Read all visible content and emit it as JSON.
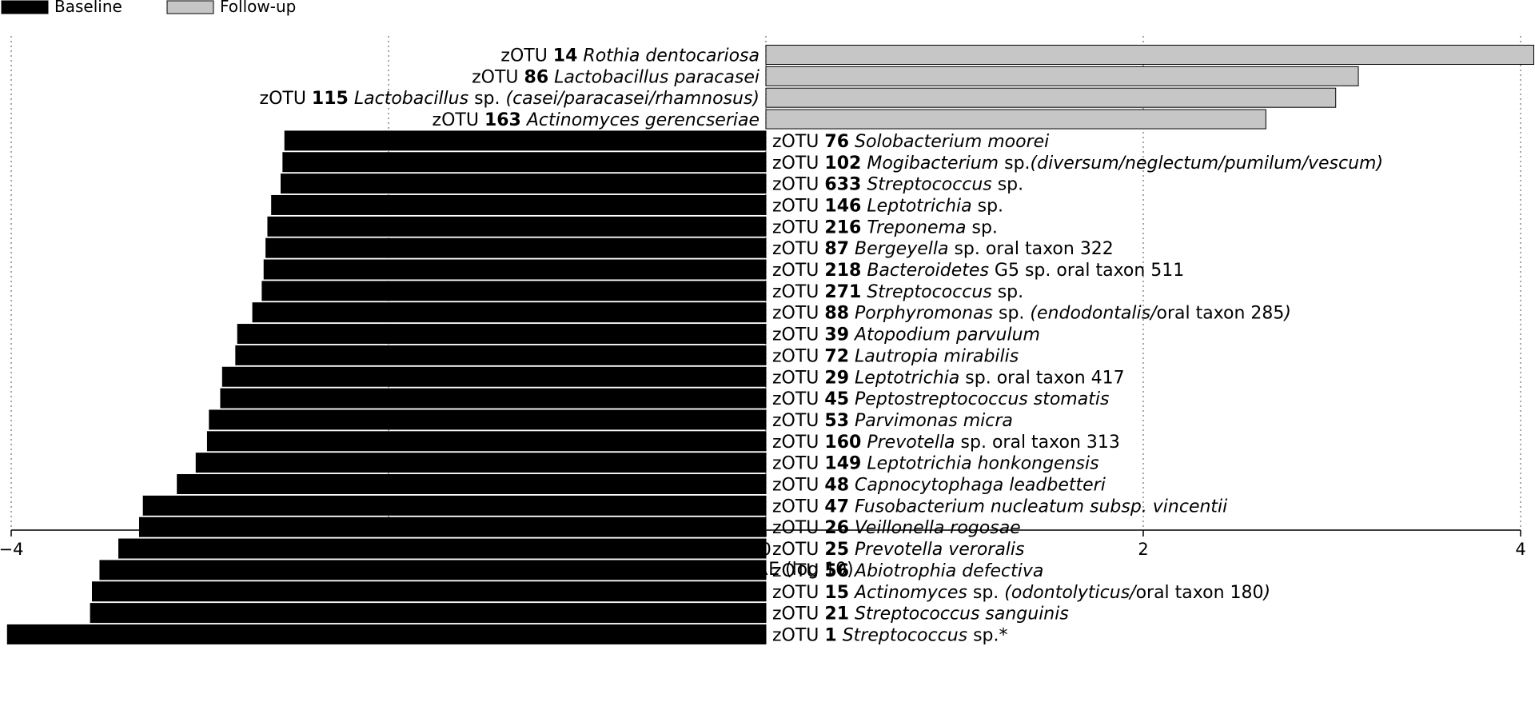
{
  "chart_data": {
    "type": "bar",
    "orientation": "horizontal",
    "xlabel": "LDA SCORE (log 10)",
    "xlim": [
      -4.0,
      4.0
    ],
    "xticks": [
      -4,
      -2,
      0,
      2,
      4
    ],
    "xtick_labels": [
      "−4",
      "−2",
      "0",
      "2",
      "4"
    ],
    "grid": "vertical dotted lines at ticks",
    "legend_position": "top-left",
    "legend": [
      {
        "name": "Baseline",
        "color": "#000000"
      },
      {
        "name": "Follow-up",
        "color": "#c6c6c6"
      }
    ],
    "bars": [
      {
        "group": "Follow-up",
        "value": 4.07,
        "label": [
          {
            "t": "zOTU "
          },
          {
            "t": "14",
            "b": 1
          },
          {
            "t": " "
          },
          {
            "t": "Rothia dentocariosa",
            "i": 1
          }
        ]
      },
      {
        "group": "Follow-up",
        "value": 3.14,
        "label": [
          {
            "t": "zOTU "
          },
          {
            "t": "86",
            "b": 1
          },
          {
            "t": " "
          },
          {
            "t": "Lactobacillus paracasei",
            "i": 1
          }
        ]
      },
      {
        "group": "Follow-up",
        "value": 3.02,
        "label": [
          {
            "t": "zOTU "
          },
          {
            "t": "115",
            "b": 1
          },
          {
            "t": " "
          },
          {
            "t": "Lactobacillus",
            "i": 1
          },
          {
            "t": " sp. "
          },
          {
            "t": "(casei/paracasei/rhamnosus)",
            "i": 1
          }
        ]
      },
      {
        "group": "Follow-up",
        "value": 2.65,
        "label": [
          {
            "t": "zOTU "
          },
          {
            "t": "163",
            "b": 1
          },
          {
            "t": " "
          },
          {
            "t": "Actinomyces gerencseriae",
            "i": 1
          }
        ]
      },
      {
        "group": "Baseline",
        "value": -2.55,
        "label": [
          {
            "t": "zOTU "
          },
          {
            "t": "76",
            "b": 1
          },
          {
            "t": " "
          },
          {
            "t": "Solobacterium moorei",
            "i": 1
          }
        ]
      },
      {
        "group": "Baseline",
        "value": -2.56,
        "label": [
          {
            "t": "zOTU "
          },
          {
            "t": "102",
            "b": 1
          },
          {
            "t": " "
          },
          {
            "t": "Mogibacterium",
            "i": 1
          },
          {
            "t": " sp."
          },
          {
            "t": "(diversum/neglectum/pumilum/vescum)",
            "i": 1
          }
        ]
      },
      {
        "group": "Baseline",
        "value": -2.57,
        "label": [
          {
            "t": "zOTU "
          },
          {
            "t": "633",
            "b": 1
          },
          {
            "t": " "
          },
          {
            "t": "Streptococcus",
            "i": 1
          },
          {
            "t": " sp."
          }
        ]
      },
      {
        "group": "Baseline",
        "value": -2.62,
        "label": [
          {
            "t": "zOTU "
          },
          {
            "t": "146",
            "b": 1
          },
          {
            "t": " "
          },
          {
            "t": "Leptotrichia",
            "i": 1
          },
          {
            "t": " sp."
          }
        ]
      },
      {
        "group": "Baseline",
        "value": -2.64,
        "label": [
          {
            "t": "zOTU "
          },
          {
            "t": "216",
            "b": 1
          },
          {
            "t": " "
          },
          {
            "t": "Treponema",
            "i": 1
          },
          {
            "t": " sp."
          }
        ]
      },
      {
        "group": "Baseline",
        "value": -2.65,
        "label": [
          {
            "t": "zOTU "
          },
          {
            "t": "87",
            "b": 1
          },
          {
            "t": " "
          },
          {
            "t": "Bergeyella",
            "i": 1
          },
          {
            "t": " sp. oral taxon 322"
          }
        ]
      },
      {
        "group": "Baseline",
        "value": -2.66,
        "label": [
          {
            "t": "zOTU "
          },
          {
            "t": "218",
            "b": 1
          },
          {
            "t": " "
          },
          {
            "t": "Bacteroidetes",
            "i": 1
          },
          {
            "t": " G5 sp. oral taxon 511"
          }
        ]
      },
      {
        "group": "Baseline",
        "value": -2.67,
        "label": [
          {
            "t": "zOTU "
          },
          {
            "t": "271",
            "b": 1
          },
          {
            "t": " "
          },
          {
            "t": "Streptococcus",
            "i": 1
          },
          {
            "t": " sp."
          }
        ]
      },
      {
        "group": "Baseline",
        "value": -2.72,
        "label": [
          {
            "t": "zOTU "
          },
          {
            "t": "88",
            "b": 1
          },
          {
            "t": " "
          },
          {
            "t": "Porphyromonas",
            "i": 1
          },
          {
            "t": " sp. "
          },
          {
            "t": "(endodontalis/",
            "i": 1
          },
          {
            "t": "oral taxon 285"
          },
          {
            "t": ")",
            "i": 1
          }
        ]
      },
      {
        "group": "Baseline",
        "value": -2.8,
        "label": [
          {
            "t": "zOTU "
          },
          {
            "t": "39",
            "b": 1
          },
          {
            "t": " "
          },
          {
            "t": "Atopodium parvulum",
            "i": 1
          }
        ]
      },
      {
        "group": "Baseline",
        "value": -2.81,
        "label": [
          {
            "t": "zOTU "
          },
          {
            "t": "72",
            "b": 1
          },
          {
            "t": " "
          },
          {
            "t": "Lautropia mirabilis",
            "i": 1
          }
        ]
      },
      {
        "group": "Baseline",
        "value": -2.88,
        "label": [
          {
            "t": "zOTU "
          },
          {
            "t": "29",
            "b": 1
          },
          {
            "t": " "
          },
          {
            "t": "Leptotrichia",
            "i": 1
          },
          {
            "t": " sp. oral taxon 417"
          }
        ]
      },
      {
        "group": "Baseline",
        "value": -2.89,
        "label": [
          {
            "t": "zOTU "
          },
          {
            "t": "45",
            "b": 1
          },
          {
            "t": " "
          },
          {
            "t": "Peptostreptococcus stomatis",
            "i": 1
          }
        ]
      },
      {
        "group": "Baseline",
        "value": -2.95,
        "label": [
          {
            "t": "zOTU "
          },
          {
            "t": "53",
            "b": 1
          },
          {
            "t": " "
          },
          {
            "t": "Parvimonas micra",
            "i": 1
          }
        ]
      },
      {
        "group": "Baseline",
        "value": -2.96,
        "label": [
          {
            "t": "zOTU "
          },
          {
            "t": "160",
            "b": 1
          },
          {
            "t": " "
          },
          {
            "t": "Prevotella",
            "i": 1
          },
          {
            "t": " sp. oral taxon 313"
          }
        ]
      },
      {
        "group": "Baseline",
        "value": -3.02,
        "label": [
          {
            "t": "zOTU "
          },
          {
            "t": "149",
            "b": 1
          },
          {
            "t": " "
          },
          {
            "t": "Leptotrichia honkongensis",
            "i": 1
          }
        ]
      },
      {
        "group": "Baseline",
        "value": -3.12,
        "label": [
          {
            "t": "zOTU "
          },
          {
            "t": "48",
            "b": 1
          },
          {
            "t": " "
          },
          {
            "t": "Capnocytophaga leadbetteri",
            "i": 1
          }
        ]
      },
      {
        "group": "Baseline",
        "value": -3.3,
        "label": [
          {
            "t": "zOTU "
          },
          {
            "t": "47",
            "b": 1
          },
          {
            "t": " "
          },
          {
            "t": "Fusobacterium nucleatum subsp. vincentii",
            "i": 1
          }
        ]
      },
      {
        "group": "Baseline",
        "value": -3.32,
        "label": [
          {
            "t": "zOTU "
          },
          {
            "t": "26",
            "b": 1
          },
          {
            "t": " "
          },
          {
            "t": "Veillonella rogosae",
            "i": 1
          }
        ]
      },
      {
        "group": "Baseline",
        "value": -3.43,
        "label": [
          {
            "t": "zOTU "
          },
          {
            "t": "25",
            "b": 1
          },
          {
            "t": " "
          },
          {
            "t": "Prevotella veroralis",
            "i": 1
          }
        ]
      },
      {
        "group": "Baseline",
        "value": -3.53,
        "label": [
          {
            "t": "zOTU "
          },
          {
            "t": "56",
            "b": 1
          },
          {
            "t": "  "
          },
          {
            "t": "Abiotrophia defectiva",
            "i": 1
          }
        ]
      },
      {
        "group": "Baseline",
        "value": -3.57,
        "label": [
          {
            "t": "zOTU "
          },
          {
            "t": "15",
            "b": 1
          },
          {
            "t": " "
          },
          {
            "t": "Actinomyces",
            "i": 1
          },
          {
            "t": " sp. "
          },
          {
            "t": "(odontolyticus/",
            "i": 1
          },
          {
            "t": "oral taxon 180"
          },
          {
            "t": ")",
            "i": 1
          }
        ]
      },
      {
        "group": "Baseline",
        "value": -3.58,
        "label": [
          {
            "t": "zOTU "
          },
          {
            "t": "21",
            "b": 1
          },
          {
            "t": " "
          },
          {
            "t": "Streptococcus sanguinis",
            "i": 1
          }
        ]
      },
      {
        "group": "Baseline",
        "value": -4.02,
        "label": [
          {
            "t": "zOTU "
          },
          {
            "t": "1",
            "b": 1
          },
          {
            "t": " "
          },
          {
            "t": "Streptococcus",
            "i": 1
          },
          {
            "t": " sp.*"
          }
        ]
      }
    ]
  }
}
